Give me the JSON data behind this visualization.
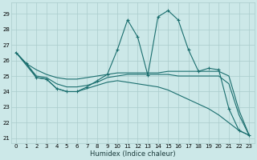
{
  "xlabel": "Humidex (Indice chaleur)",
  "bg_color": "#cce8e8",
  "grid_color": "#aacccc",
  "line_color": "#1a6e6e",
  "xlim": [
    -0.5,
    23.5
  ],
  "ylim": [
    20.7,
    29.7
  ],
  "yticks": [
    21,
    22,
    23,
    24,
    25,
    26,
    27,
    28,
    29
  ],
  "xticks": [
    0,
    1,
    2,
    3,
    4,
    5,
    6,
    7,
    8,
    9,
    10,
    11,
    12,
    13,
    14,
    15,
    16,
    17,
    18,
    19,
    20,
    21,
    22,
    23
  ],
  "line_spike_x": [
    0,
    1,
    2,
    3,
    4,
    5,
    6,
    7,
    8,
    9,
    10,
    11,
    12,
    13,
    14,
    15,
    16,
    17,
    18,
    19,
    20,
    21,
    22,
    23
  ],
  "line_spike_y": [
    26.5,
    25.8,
    24.9,
    24.8,
    24.2,
    24.0,
    24.0,
    24.3,
    24.7,
    25.1,
    26.7,
    28.6,
    27.5,
    25.05,
    28.8,
    29.2,
    28.6,
    26.7,
    25.3,
    25.5,
    25.4,
    22.9,
    21.5,
    21.2
  ],
  "line_flat_high_x": [
    0,
    1,
    2,
    3,
    4,
    5,
    6,
    7,
    8,
    9,
    10,
    11,
    12,
    13,
    14,
    15,
    16,
    17,
    18,
    19,
    20,
    21,
    22,
    23
  ],
  "line_flat_high_y": [
    26.5,
    25.8,
    25.4,
    25.1,
    24.9,
    24.8,
    24.8,
    24.9,
    25.0,
    25.1,
    25.2,
    25.2,
    25.2,
    25.2,
    25.2,
    25.3,
    25.3,
    25.3,
    25.3,
    25.3,
    25.3,
    25.0,
    22.8,
    21.2
  ],
  "line_flat_mid_x": [
    0,
    1,
    2,
    3,
    4,
    5,
    6,
    7,
    8,
    9,
    10,
    11,
    12,
    13,
    14,
    15,
    16,
    17,
    18,
    19,
    20,
    21,
    22,
    23
  ],
  "line_flat_mid_y": [
    26.5,
    25.8,
    25.0,
    24.9,
    24.5,
    24.3,
    24.3,
    24.4,
    24.6,
    24.9,
    25.0,
    25.1,
    25.1,
    25.1,
    25.1,
    25.1,
    25.0,
    25.0,
    25.0,
    25.0,
    25.0,
    24.5,
    22.5,
    21.2
  ],
  "line_diagonal_x": [
    0,
    1,
    2,
    3,
    4,
    5,
    6,
    7,
    8,
    9,
    10,
    11,
    12,
    13,
    14,
    15,
    16,
    17,
    18,
    19,
    20,
    21,
    22,
    23
  ],
  "line_diagonal_y": [
    26.5,
    25.7,
    24.9,
    24.8,
    24.2,
    24.0,
    24.0,
    24.2,
    24.4,
    24.6,
    24.7,
    24.6,
    24.5,
    24.4,
    24.3,
    24.1,
    23.8,
    23.5,
    23.2,
    22.9,
    22.5,
    22.0,
    21.5,
    21.2
  ]
}
